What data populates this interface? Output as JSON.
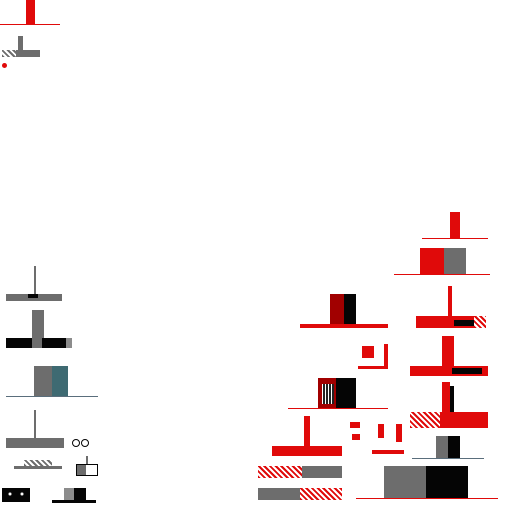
{
  "scene": {
    "background_color": "#ffffff",
    "palette": {
      "red": "#e00a0a",
      "dark_red": "#a10000",
      "gray": "#6d6d6d",
      "black": "#050505",
      "teal": "#3e6a72"
    },
    "sprites": [
      "top-left-red-post",
      "top-left-gray-post",
      "top-left-red-dot",
      "left-antenna-bar",
      "left-black-bar",
      "left-teal-block",
      "left-antenna-bar-2",
      "left-small-glyph",
      "left-bottom-clusters",
      "right-red-post-top",
      "right-red-gray-block",
      "right-red-post-hatched",
      "right-red-post-2",
      "right-red-post-3",
      "right-bottom-blocks"
    ]
  }
}
